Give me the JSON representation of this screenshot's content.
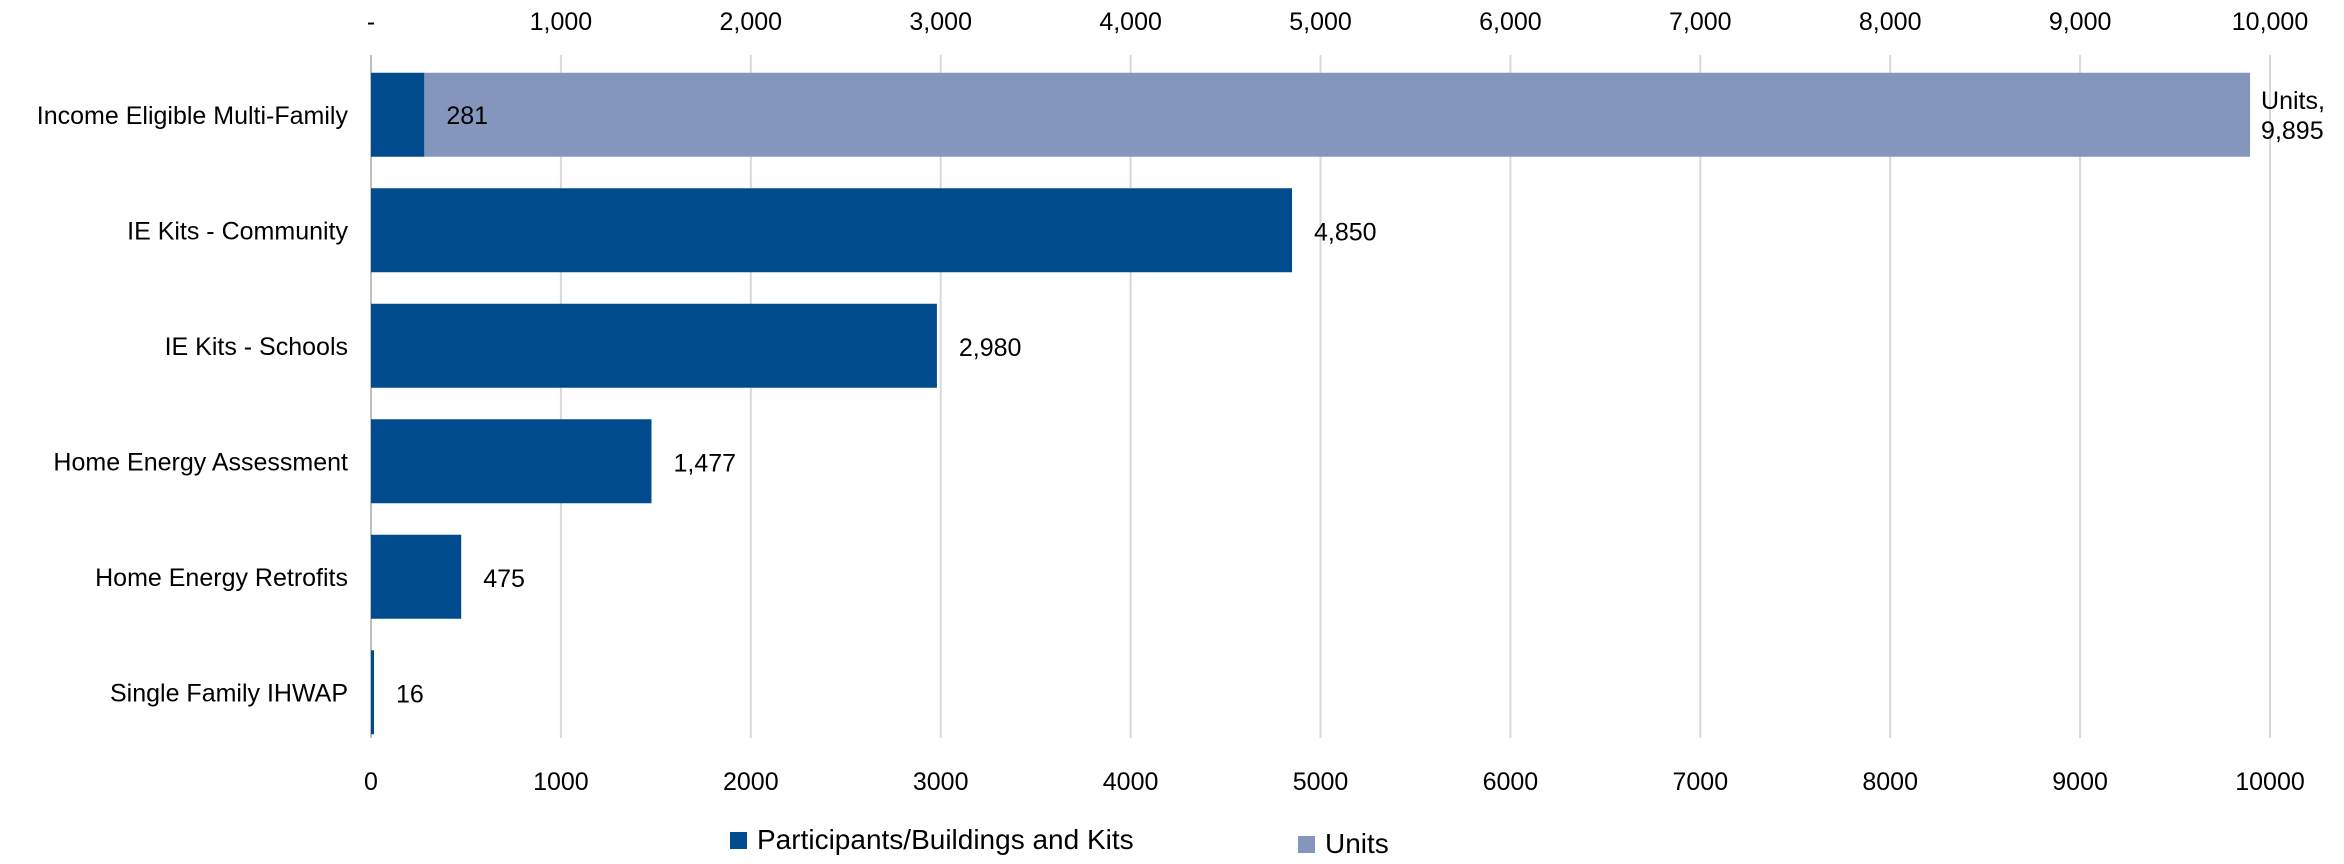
{
  "chart_data": {
    "type": "bar",
    "orientation": "horizontal",
    "stacked": true,
    "categories": [
      "Income Eligible Multi-Family",
      "IE Kits - Community",
      "IE Kits - Schools",
      "Home Energy Assessment",
      "Home Energy Retrofits",
      "Single Family IHWAP"
    ],
    "series": [
      {
        "name": "Participants/Buildings and Kits",
        "color": "#004B8D",
        "values": [
          281,
          4850,
          2980,
          1477,
          475,
          16
        ],
        "labels": [
          "281",
          "4,850",
          "2,980",
          "1,477",
          "475",
          "16"
        ]
      },
      {
        "name": "Units",
        "color": "#8596BD",
        "values": [
          9614,
          null,
          null,
          null,
          null,
          null
        ],
        "label_lines": [
          "Units,",
          "9,895"
        ]
      }
    ],
    "xlim": [
      0,
      10000
    ],
    "top_axis_ticks": [
      "-",
      "1,000",
      "2,000",
      "3,000",
      "4,000",
      "5,000",
      "6,000",
      "7,000",
      "8,000",
      "9,000",
      "10,000"
    ],
    "bottom_axis_ticks": [
      "0",
      "1000",
      "2000",
      "3000",
      "4000",
      "5000",
      "6000",
      "7000",
      "8000",
      "9000",
      "10000"
    ],
    "grid": true,
    "legend_position": "bottom"
  }
}
